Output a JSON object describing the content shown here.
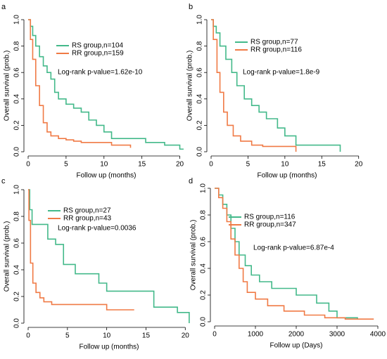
{
  "chart_data": [
    {
      "type": "line",
      "panel": "a",
      "xlabel": "Follow up (months)",
      "ylabel": "Overall survival (prob.)",
      "annotation": "Log-rank p-value=1.62e-10",
      "xlim": [
        0,
        20.6
      ],
      "xticks": [
        0,
        5,
        10,
        15,
        20
      ],
      "ylim": [
        0,
        1
      ],
      "yticks": [
        {
          "value": 0,
          "label": "0.0"
        },
        0.2,
        0.4,
        0.6,
        0.8,
        {
          "value": 1,
          "label": "1.0"
        }
      ],
      "series": [
        {
          "name": "RS group,n=104",
          "color": "#43b98a",
          "x": [
            0,
            0.3,
            0.6,
            1,
            1.5,
            2,
            2.5,
            3,
            3.5,
            4,
            5,
            6,
            7,
            8,
            9,
            10,
            11,
            15.5,
            18,
            20,
            20.5
          ],
          "values": [
            1,
            0.95,
            0.88,
            0.8,
            0.72,
            0.65,
            0.6,
            0.55,
            0.45,
            0.4,
            0.36,
            0.33,
            0.3,
            0.24,
            0.2,
            0.15,
            0.1,
            0.07,
            0.05,
            0.02,
            0.02
          ]
        },
        {
          "name": "RR group,n=159",
          "color": "#f07a45",
          "x": [
            0,
            0.3,
            0.6,
            1,
            1.5,
            2,
            2.5,
            3,
            4,
            5,
            6,
            7,
            11,
            13.5
          ],
          "values": [
            1,
            0.85,
            0.7,
            0.5,
            0.35,
            0.22,
            0.15,
            0.12,
            0.1,
            0.09,
            0.08,
            0.07,
            0.05,
            0.03
          ]
        }
      ]
    },
    {
      "type": "line",
      "panel": "b",
      "xlabel": "Follow up (months)",
      "ylabel": "Overall survival (prob.)",
      "annotation": "Log-rank p-value=1.8e-9",
      "xlim": [
        0,
        20.6
      ],
      "xticks": [
        0,
        5,
        10,
        15,
        20
      ],
      "ylim": [
        0,
        1
      ],
      "yticks": [
        {
          "value": 0,
          "label": "0.0"
        },
        0.2,
        0.4,
        0.6,
        0.8,
        {
          "value": 1,
          "label": "1.0"
        }
      ],
      "series": [
        {
          "name": "RS group,n=77",
          "color": "#43b98a",
          "x": [
            0,
            0.3,
            0.7,
            1.2,
            2,
            2.8,
            3.5,
            4.5,
            5.5,
            6.5,
            7.5,
            9,
            10,
            11.5,
            17.5
          ],
          "values": [
            1,
            0.95,
            0.9,
            0.8,
            0.7,
            0.6,
            0.5,
            0.4,
            0.35,
            0.3,
            0.25,
            0.18,
            0.12,
            0.05,
            0
          ]
        },
        {
          "name": "RR group,n=116",
          "color": "#f07a45",
          "x": [
            0,
            0.3,
            0.8,
            1.2,
            1.7,
            2.2,
            3,
            4,
            5.5,
            7,
            11.5
          ],
          "values": [
            1,
            0.85,
            0.6,
            0.45,
            0.3,
            0.2,
            0.12,
            0.08,
            0.05,
            0.04,
            0
          ]
        }
      ]
    },
    {
      "type": "line",
      "panel": "c",
      "xlabel": "Follow up (months)",
      "ylabel": "Overall survival (prob.)",
      "annotation": "Log-rank p-value=0.0036",
      "xlim": [
        0,
        20.6
      ],
      "xticks": [
        0,
        5,
        10,
        15,
        20
      ],
      "ylim": [
        0,
        1
      ],
      "yticks": [
        {
          "value": 0,
          "label": "0.0"
        },
        0.2,
        0.4,
        0.6,
        0.8,
        {
          "value": 1,
          "label": "1.0"
        }
      ],
      "series": [
        {
          "name": "RS group,n=27",
          "color": "#43b98a",
          "x": [
            0,
            0.2,
            0.5,
            2.5,
            3.5,
            4.5,
            6,
            9,
            10,
            16,
            19,
            20.5
          ],
          "values": [
            1,
            0.85,
            0.74,
            0.63,
            0.59,
            0.44,
            0.37,
            0.3,
            0.24,
            0.12,
            0.08,
            0
          ]
        },
        {
          "name": "RR group,n=43",
          "color": "#f07a45",
          "x": [
            0,
            0.1,
            0.3,
            0.6,
            1,
            1.5,
            2,
            3,
            10,
            13.5
          ],
          "values": [
            1,
            0.77,
            0.45,
            0.3,
            0.23,
            0.19,
            0.16,
            0.14,
            0.1,
            0.1
          ]
        }
      ]
    },
    {
      "type": "line",
      "panel": "d",
      "xlabel": "Follow up (Days)",
      "ylabel": "Overall survival (prob.)",
      "annotation": "Log-rank p-value=6.87e-4",
      "xlim": [
        0,
        4000
      ],
      "xticks": [
        0,
        1000,
        2000,
        3000,
        4000
      ],
      "ylim": [
        0,
        1
      ],
      "yticks": [
        {
          "value": 0,
          "label": "0.0"
        },
        0.2,
        0.4,
        0.6,
        0.8,
        {
          "value": 1,
          "label": "1.0"
        }
      ],
      "series": [
        {
          "name": "RS group,n=116",
          "color": "#43b98a",
          "x": [
            0,
            100,
            200,
            300,
            400,
            500,
            600,
            750,
            900,
            1100,
            1400,
            2000,
            2500,
            2800,
            3000,
            3500
          ],
          "values": [
            1,
            0.95,
            0.88,
            0.8,
            0.7,
            0.6,
            0.5,
            0.42,
            0.35,
            0.3,
            0.25,
            0.2,
            0.14,
            0.08,
            0.03,
            0.02
          ]
        },
        {
          "name": "RR group,n=347",
          "color": "#f07a45",
          "x": [
            0,
            100,
            200,
            300,
            400,
            500,
            600,
            700,
            800,
            1000,
            1300,
            1700,
            2200,
            2700,
            3200,
            3900
          ],
          "values": [
            1,
            0.93,
            0.85,
            0.75,
            0.62,
            0.5,
            0.4,
            0.3,
            0.22,
            0.17,
            0.12,
            0.08,
            0.05,
            0.03,
            0.02,
            0.02
          ]
        }
      ]
    }
  ]
}
